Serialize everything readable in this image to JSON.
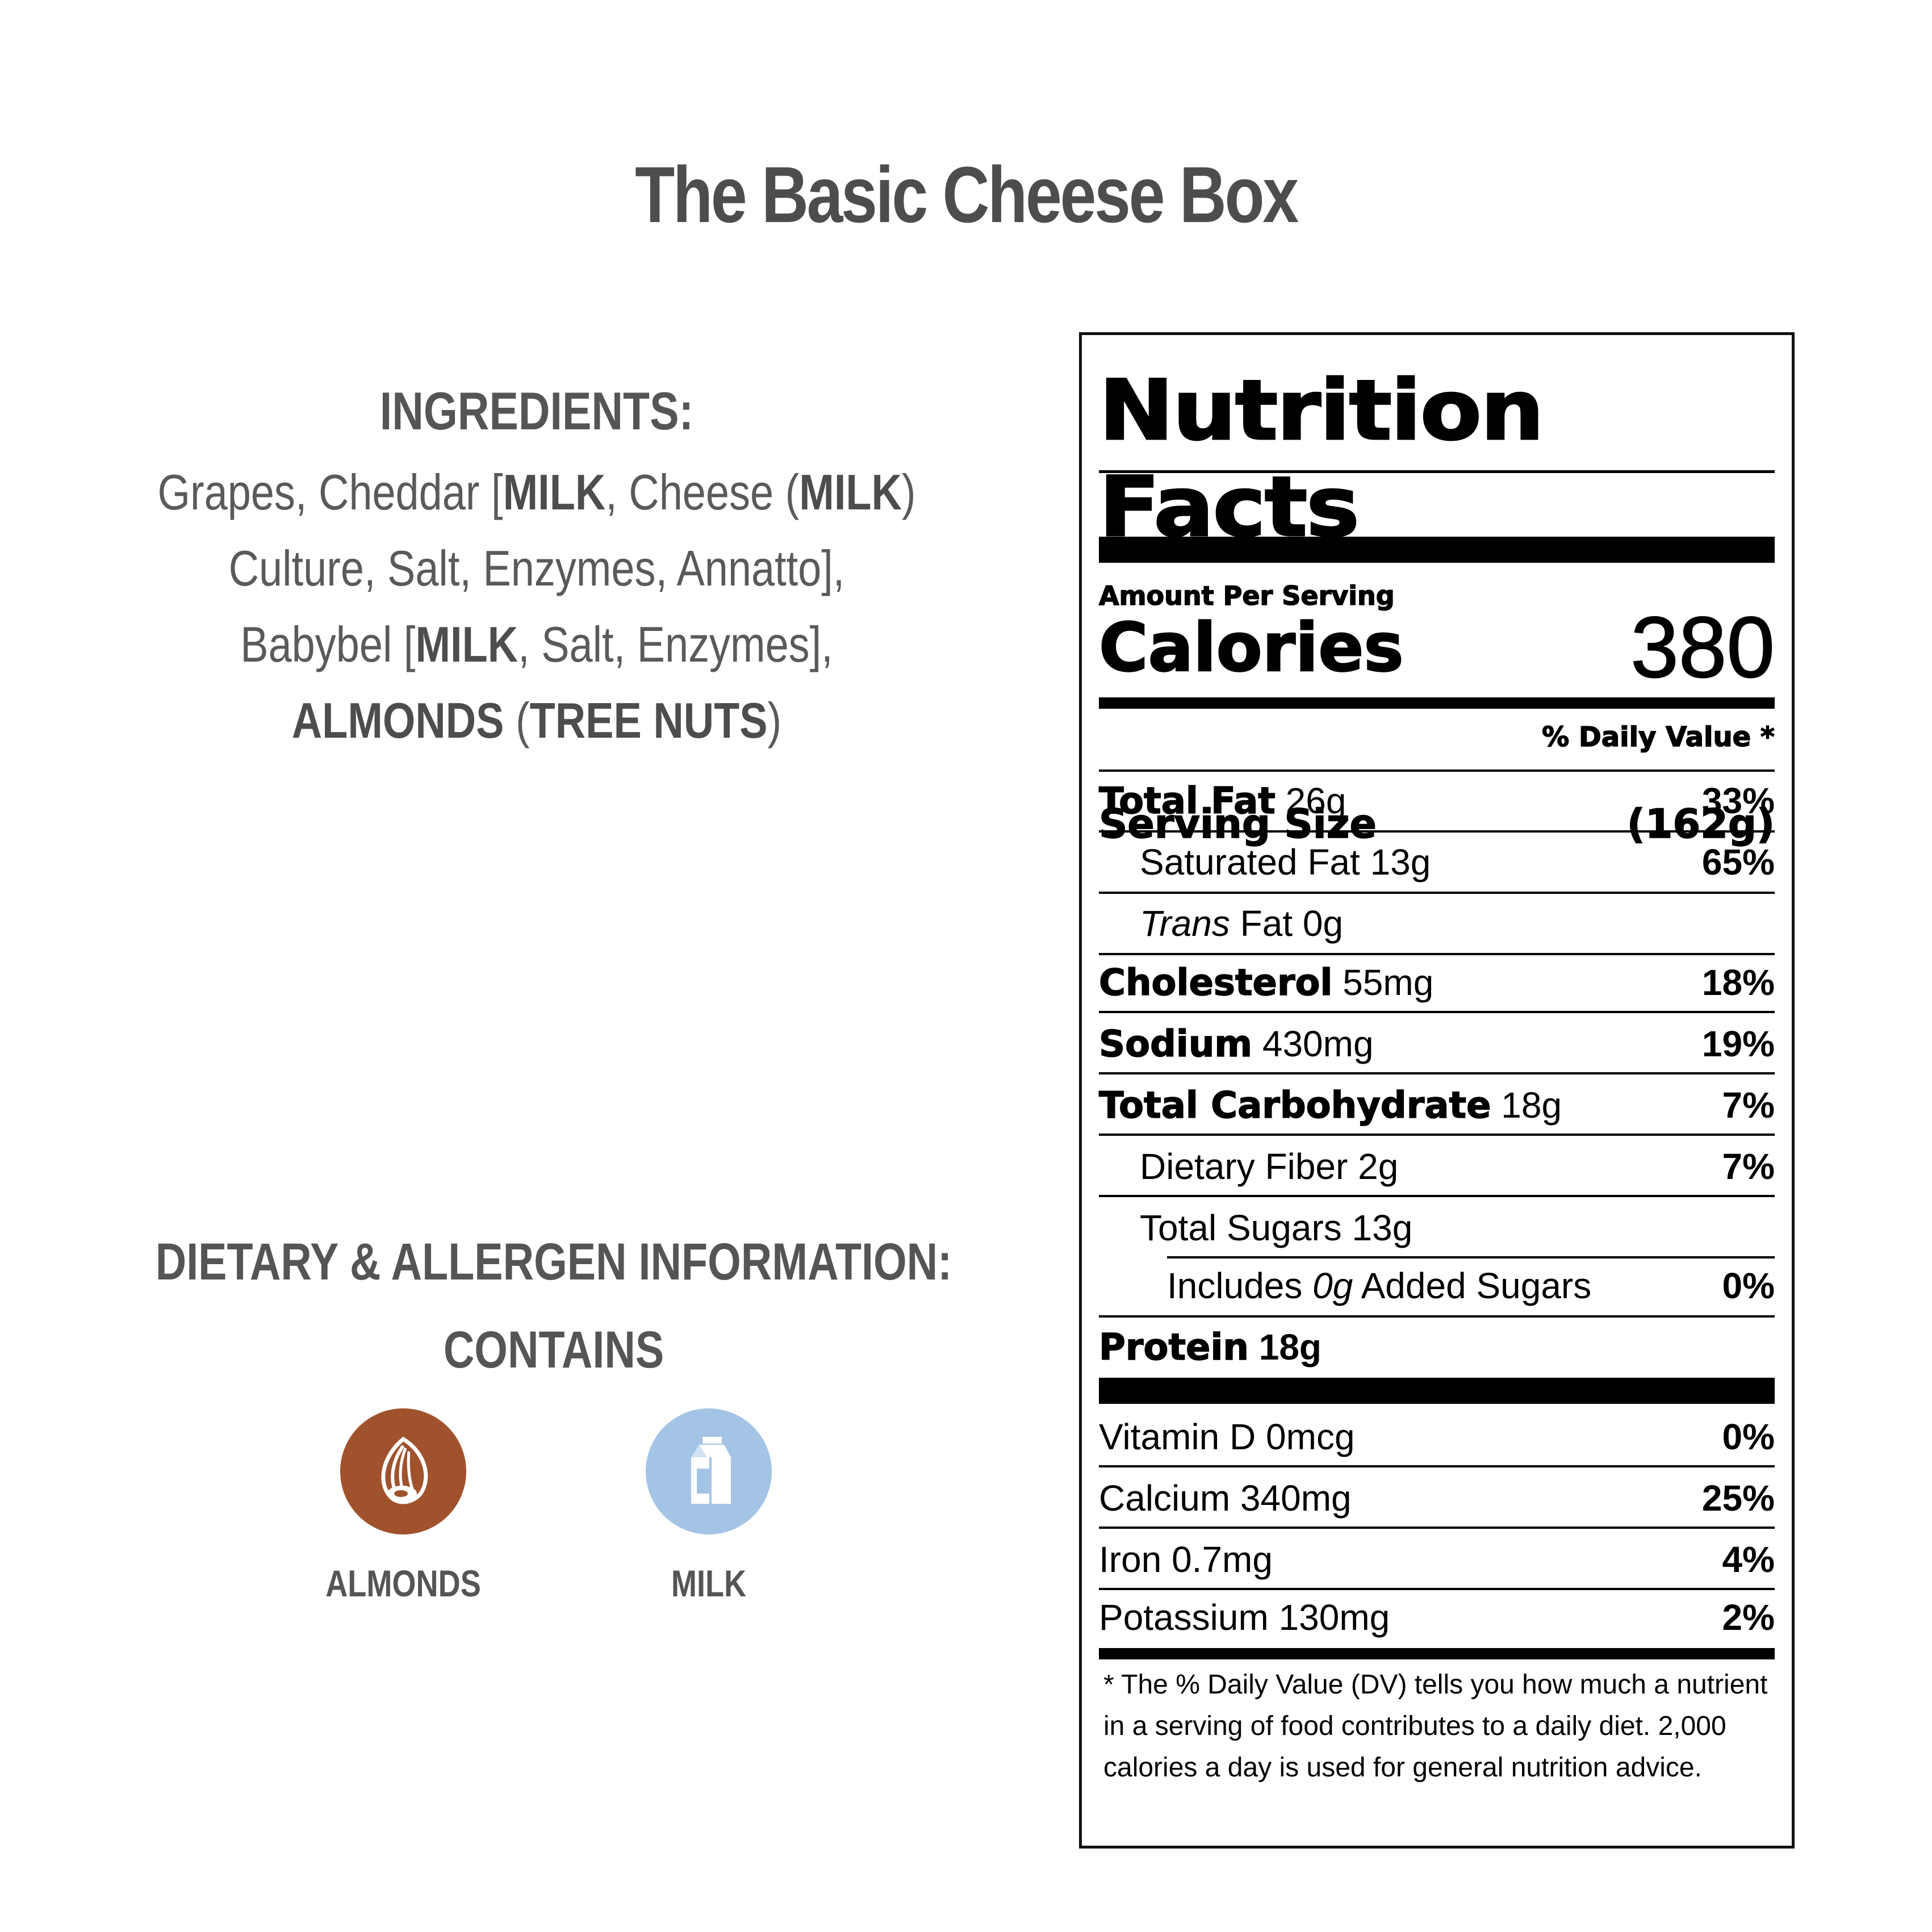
{
  "title": "The Basic Cheese Box",
  "ingredients": {
    "heading": "INGREDIENTS:",
    "line1_a": "Grapes, Cheddar [",
    "line1_b": "MILK",
    "line1_c": ", Cheese (",
    "line1_d": "MILK",
    "line1_e": ")",
    "line2": "Culture, Salt, Enzymes, Annatto],",
    "line3_a": "Babybel [",
    "line3_b": "MILK",
    "line3_c": ", Salt, Enzymes],",
    "line4_a": "ALMONDS",
    "line4_b": " (",
    "line4_c": "TREE NUTS",
    "line4_d": ")"
  },
  "dietary": {
    "heading": "DIETARY & ALLERGEN INFORMATION:",
    "contains": "CONTAINS",
    "allergens": [
      {
        "label": "ALMONDS",
        "icon": "almond-icon",
        "color": "#a0522d"
      },
      {
        "label": "MILK",
        "icon": "milk-carton-icon",
        "color": "#a4c4e6"
      }
    ]
  },
  "nutrition": {
    "title": "Nutrition Facts",
    "serving_label": "Serving Size",
    "serving_value": "(162g)",
    "amount_per_serving": "Amount Per Serving",
    "calories_label": "Calories",
    "calories_value": "380",
    "dv_header": "% Daily Value *",
    "rows": [
      {
        "bold": "Total Fat",
        "text": " 26g",
        "pct": "33%"
      },
      {
        "bold": "",
        "text": "Saturated Fat 13g",
        "pct": "65%"
      },
      {
        "italic": "Trans",
        "text": " Fat 0g",
        "pct": ""
      },
      {
        "bold": "Cholesterol",
        "text": " 55mg",
        "pct": "18%"
      },
      {
        "bold": "Sodium",
        "text": " 430mg",
        "pct": "19%"
      },
      {
        "bold": "Total Carbohydrate",
        "text": " 18g",
        "pct": "7%"
      },
      {
        "bold": "",
        "text": "Dietary Fiber 2g",
        "pct": "7%"
      },
      {
        "bold": "",
        "text": "Total Sugars 13g",
        "pct": ""
      },
      {
        "pre": "Includes ",
        "italic": "0g",
        "text": " Added Sugars",
        "pct": "0%"
      },
      {
        "bold": "Protein",
        "text": " 18g",
        "pct": ""
      }
    ],
    "vitamins": [
      {
        "text": "Vitamin D 0mcg",
        "pct": "0%"
      },
      {
        "text": "Calcium 340mg",
        "pct": "25%"
      },
      {
        "text": "Iron 0.7mg",
        "pct": "4%"
      },
      {
        "text": "Potassium 130mg",
        "pct": "2%"
      }
    ],
    "footnote": "* The % Daily Value (DV) tells you how much a nutrient in a serving of food contributes to a daily diet. 2,000 calories a day is used for general nutrition advice."
  }
}
